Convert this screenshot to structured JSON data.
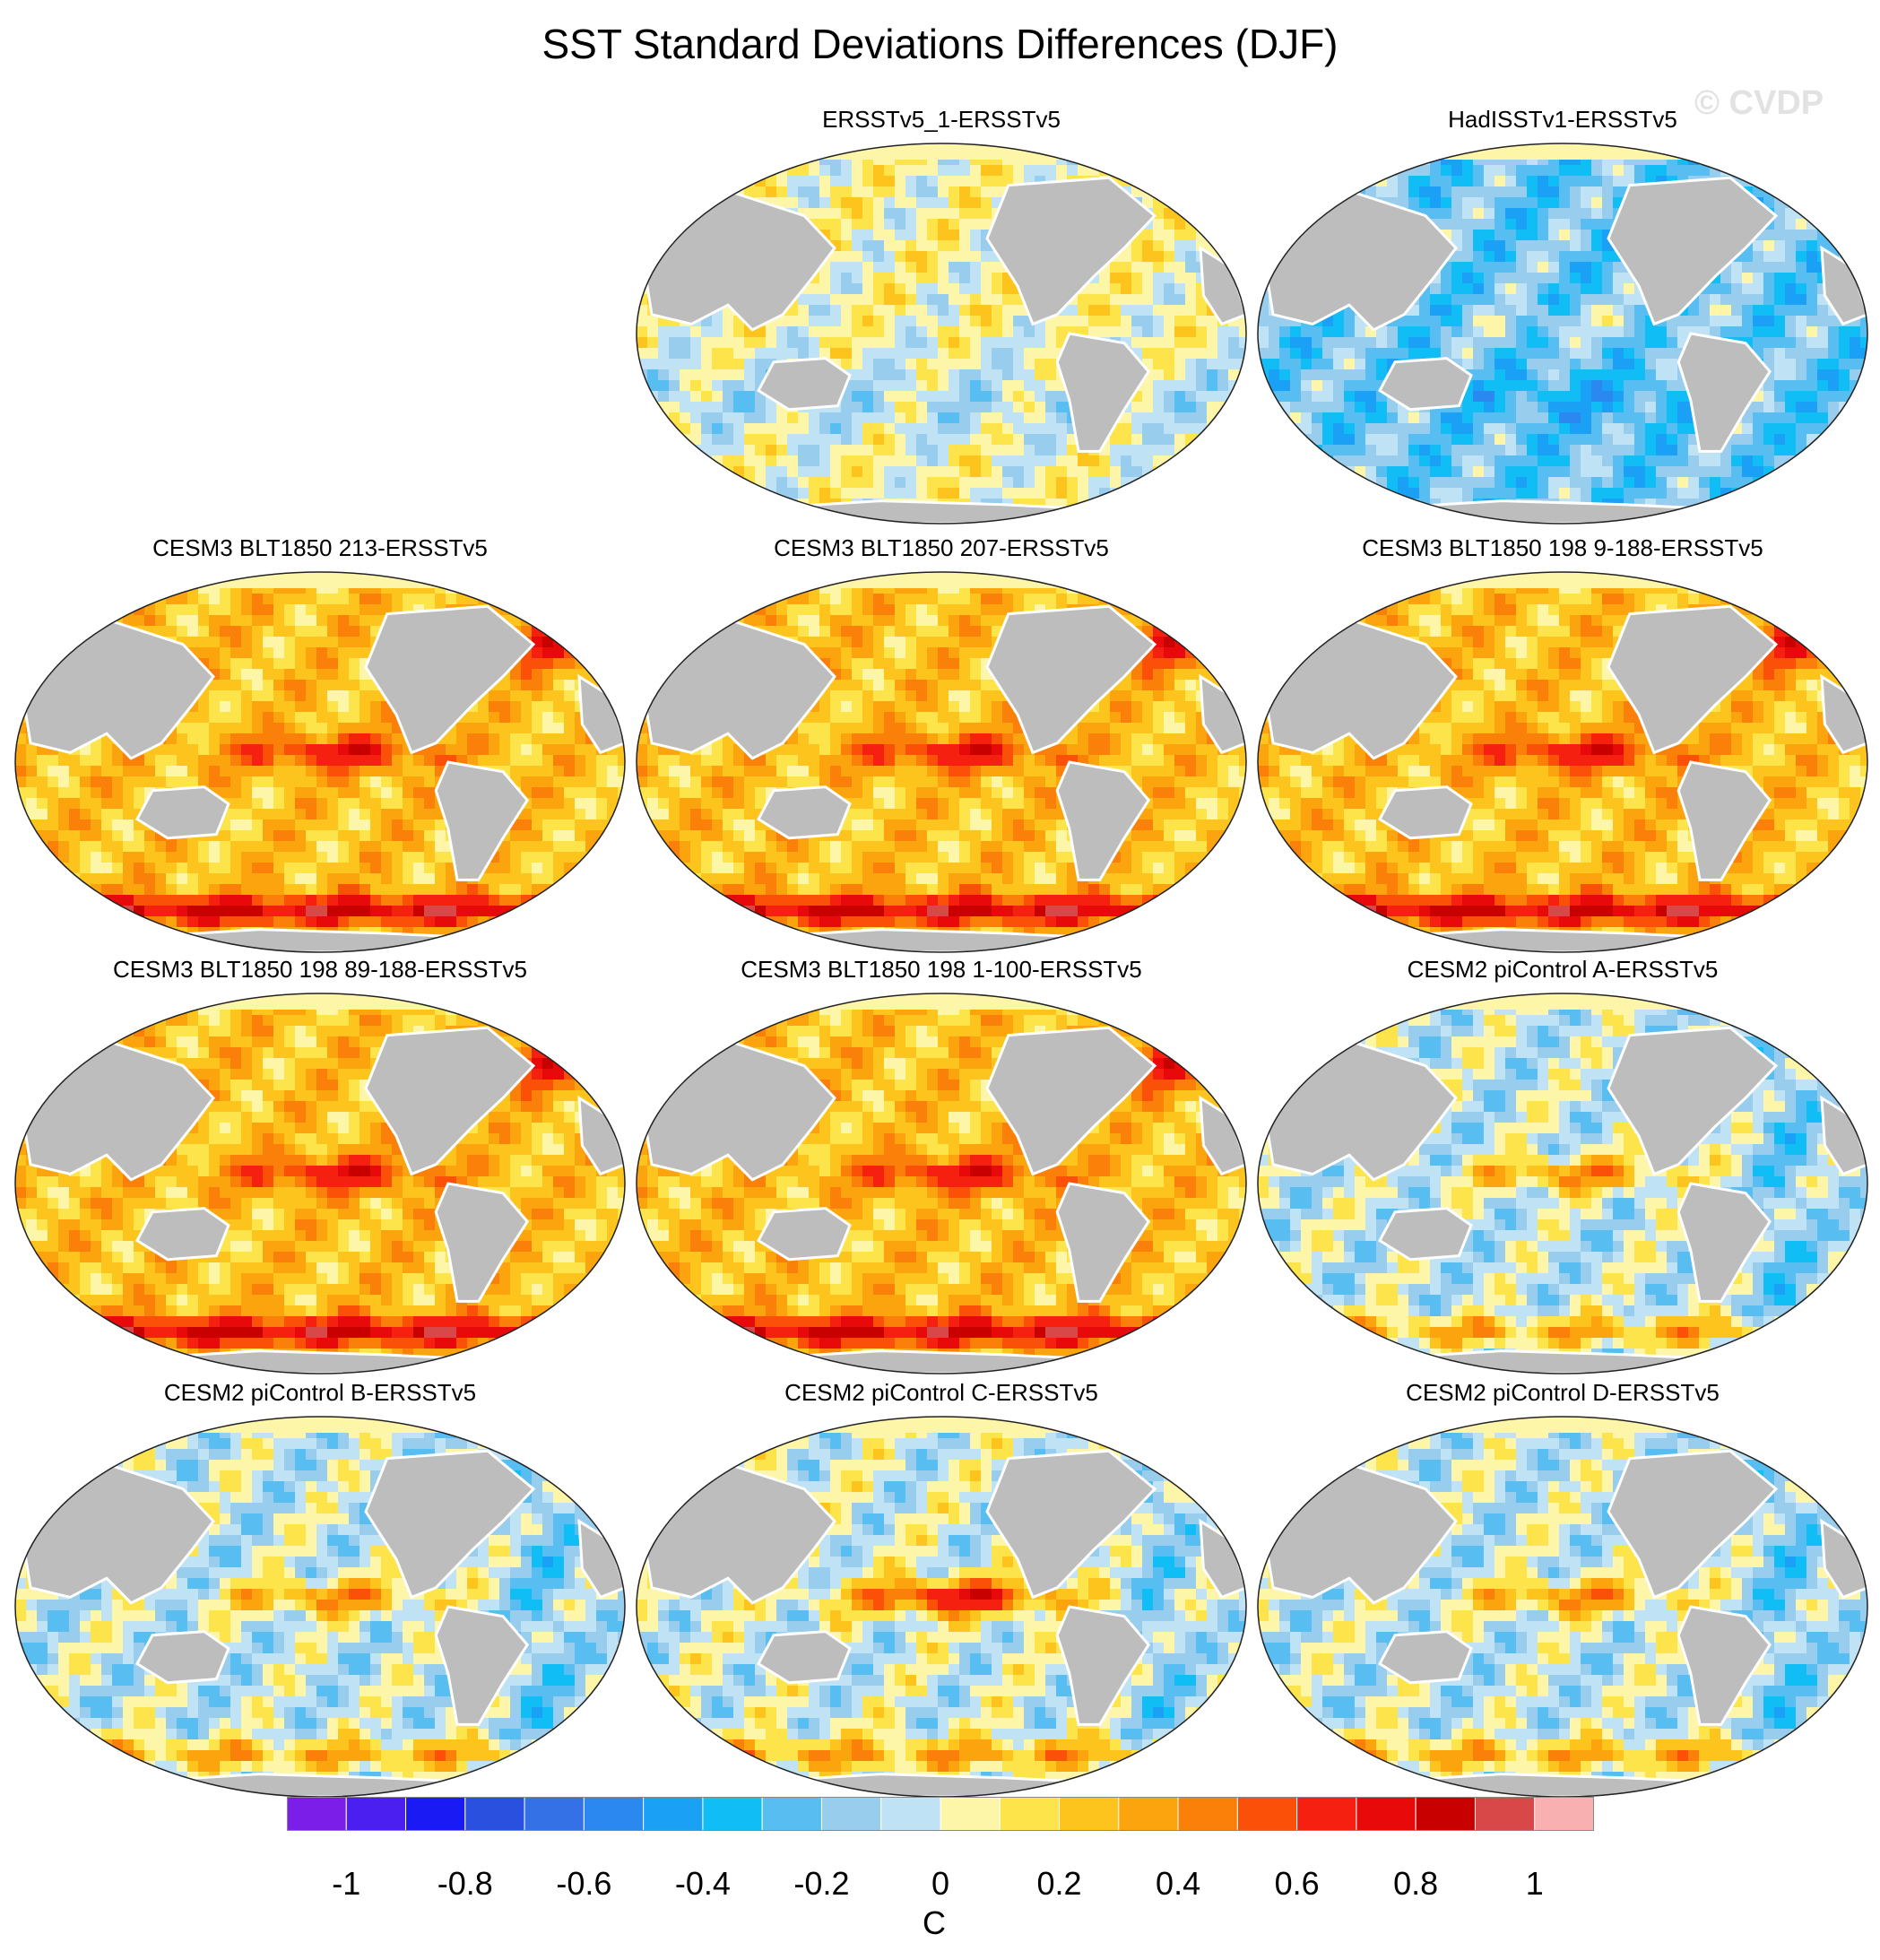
{
  "title": "SST Standard Deviations Differences (DJF)",
  "watermark": "© CVDP",
  "units": "C",
  "colors": {
    "land": "#bdbdbd",
    "ocean_default": "#fdf5a8",
    "coast": "#ffffff",
    "outline": "#222222"
  },
  "colorbar": {
    "colors": [
      "#7b1fe8",
      "#4a1ff0",
      "#1a1af5",
      "#2a50e0",
      "#3470e6",
      "#2a88f0",
      "#1aa0f5",
      "#10bef5",
      "#58bdf0",
      "#98cdee",
      "#bfe3f5",
      "#fdf5a8",
      "#fde44a",
      "#fdc41e",
      "#fca40e",
      "#fb800a",
      "#fa5008",
      "#f62010",
      "#e80a0a",
      "#c80000",
      "#d84848",
      "#f8b0b0"
    ],
    "labels": [
      "-1",
      "-0.8",
      "-0.6",
      "-0.4",
      "-0.2",
      "0",
      "0.2",
      "0.4",
      "0.6",
      "0.8",
      "1"
    ],
    "min": -1.1,
    "max": 1.1
  },
  "panels": [
    {
      "id": "ersstv5-1",
      "title": "ERSSTv5_1-ERSSTv5",
      "pattern": "neutral"
    },
    {
      "id": "hadisst",
      "title": "HadISSTv1-ERSSTv5",
      "pattern": "cool"
    },
    {
      "id": "blt-213",
      "title": "CESM3 BLT1850 213-ERSSTv5",
      "pattern": "warm"
    },
    {
      "id": "blt-207",
      "title": "CESM3 BLT1850 207-ERSSTv5",
      "pattern": "warm"
    },
    {
      "id": "blt-198-9-188",
      "title": "CESM3 BLT1850 198 9-188-ERSSTv5",
      "pattern": "warm"
    },
    {
      "id": "blt-198-89-188",
      "title": "CESM3 BLT1850 198 89-188-ERSSTv5",
      "pattern": "warm"
    },
    {
      "id": "blt-198-1-100",
      "title": "CESM3 BLT1850 198 1-100-ERSSTv5",
      "pattern": "warm"
    },
    {
      "id": "cesm2-a",
      "title": "CESM2 piControl A-ERSSTv5",
      "pattern": "mixed"
    },
    {
      "id": "cesm2-b",
      "title": "CESM2 piControl B-ERSSTv5",
      "pattern": "mixed"
    },
    {
      "id": "cesm2-c",
      "title": "CESM2 piControl C-ERSSTv5",
      "pattern": "mixed_strong"
    },
    {
      "id": "cesm2-d",
      "title": "CESM2 piControl D-ERSSTv5",
      "pattern": "mixed"
    }
  ]
}
